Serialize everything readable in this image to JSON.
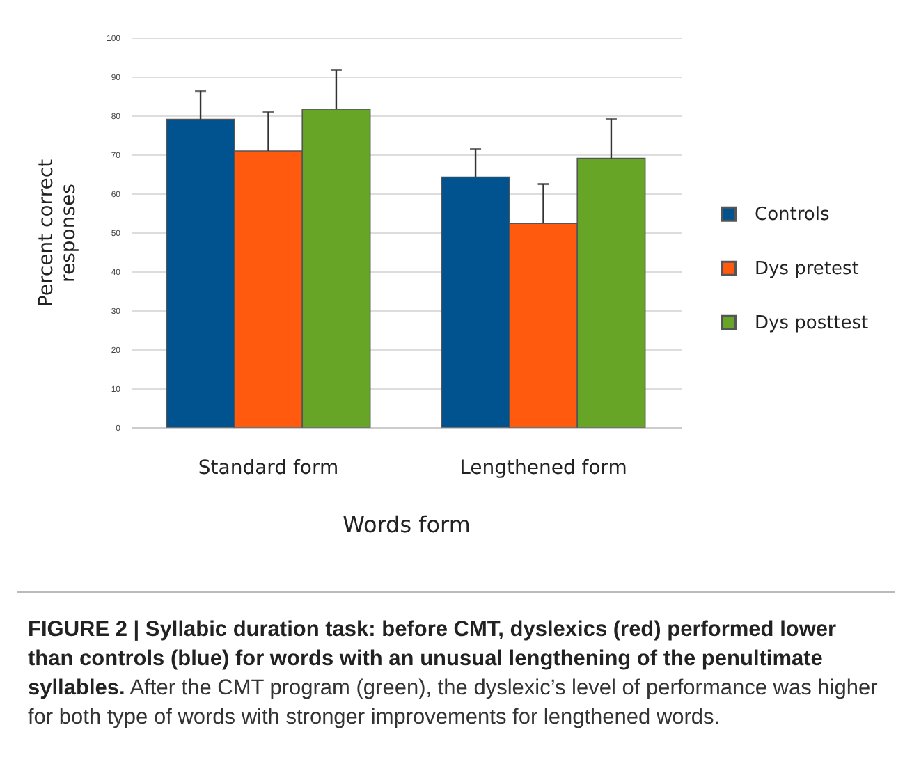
{
  "chart_data": {
    "type": "bar",
    "title": "FIGURE 2 | Syllabic duration task: before CMT, dyslexics (red) performed lower than controls (blue) for words with an unusual lengthening of the penultimate syllables.",
    "subtitle": "After the CMT program (green), the dyslexic’s level of performance was higher for both type of words with stronger improvements for lengthened words.",
    "xlabel": "Words form",
    "ylabel": "Percent correct responses",
    "categories": [
      "Standard form",
      "Lengthened form"
    ],
    "series": [
      {
        "name": "Controls",
        "color": "#00538f",
        "values": [
          79,
          64.2
        ],
        "errors": [
          [
            79,
            86.3
          ],
          [
            64.2,
            71.4
          ]
        ]
      },
      {
        "name": "Dys pretest",
        "color": "#ff5a0e",
        "values": [
          70.9,
          52.3
        ],
        "errors": [
          [
            70.9,
            80.9
          ],
          [
            52.3,
            62.4
          ]
        ]
      },
      {
        "name": "Dys posttest",
        "color": "#66a526",
        "values": [
          81.6,
          69
        ],
        "errors": [
          [
            81.6,
            91.7
          ],
          [
            69,
            79.1
          ]
        ]
      }
    ],
    "ylim": [
      0,
      100
    ],
    "yticks": [
      0,
      10,
      20,
      30,
      40,
      50,
      60,
      70,
      80,
      90,
      100
    ],
    "grid": "y",
    "legend": "right"
  }
}
